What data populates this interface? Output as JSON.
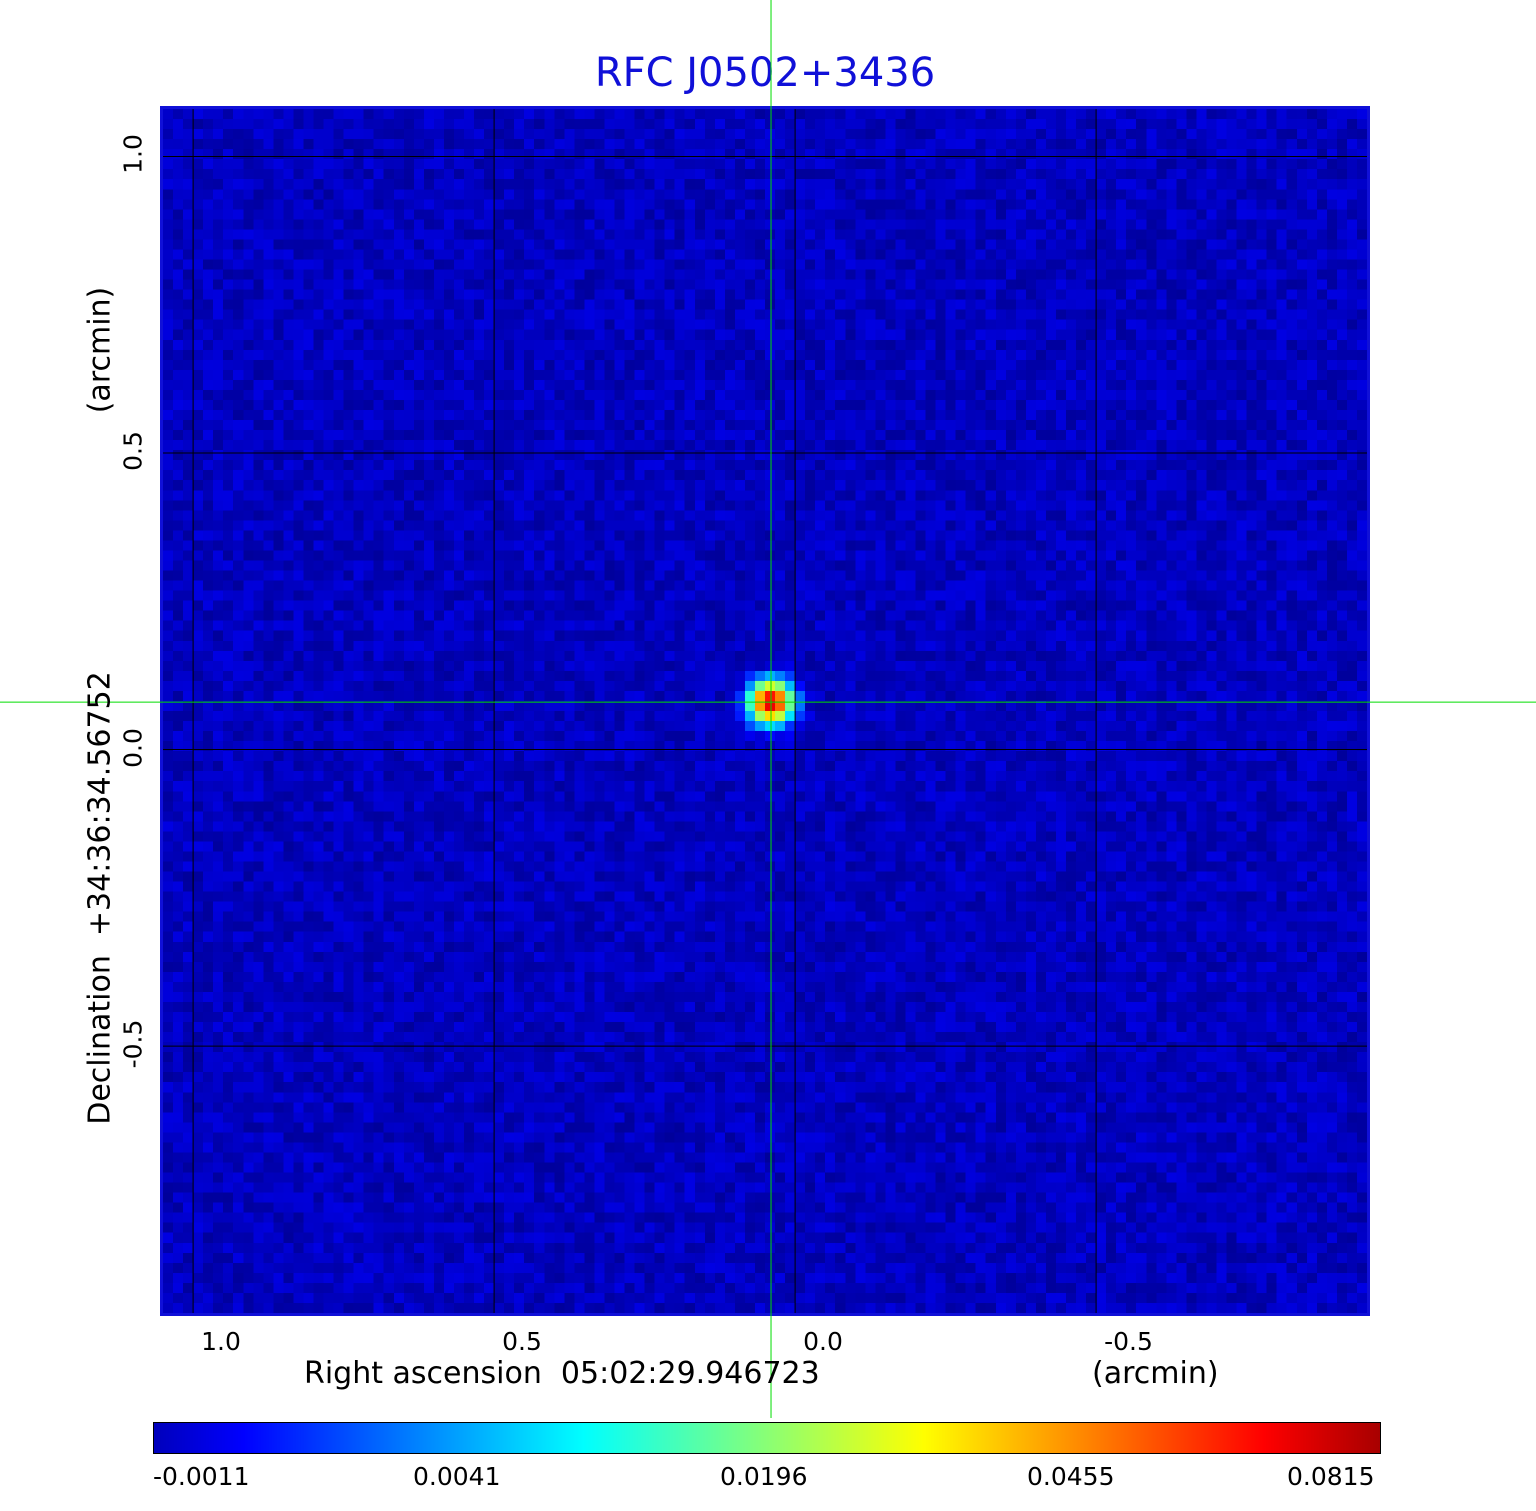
{
  "chart_data": {
    "type": "heatmap",
    "title": "RFC J0502+3436",
    "xlabel": "Right ascension  05:02:29.946723",
    "xunit": "(arcmin)",
    "ylabel": "Declination  +34:36:34.56752",
    "yunit": "(arcmin)",
    "xlim": [
      1.05,
      -0.95
    ],
    "ylim": [
      -0.95,
      1.08
    ],
    "x_ticks": [
      "1.0",
      "0.5",
      "0.0",
      "-0.5"
    ],
    "x_tick_values": [
      1.0,
      0.5,
      0.0,
      -0.5
    ],
    "y_ticks": [
      "1.0",
      "0.5",
      "0.0",
      "-0.5"
    ],
    "y_tick_values": [
      1.0,
      0.5,
      0.0,
      -0.5
    ],
    "grid": true,
    "crosshair": {
      "x": 0.04,
      "y": 0.08,
      "color": "#00dd00"
    },
    "source": {
      "x": 0.04,
      "y": 0.08,
      "peak": 0.0815
    },
    "colorbar": {
      "colormap": "jet",
      "ticks": [
        "-0.0011",
        "0.0041",
        "0.0196",
        "0.0455",
        "0.0815"
      ],
      "tick_values": [
        -0.0011,
        0.0041,
        0.0196,
        0.0455,
        0.0815
      ]
    },
    "colors": {
      "title": "#1010d8",
      "frame": "#1010d8",
      "background_map": "#1a44f0"
    }
  }
}
